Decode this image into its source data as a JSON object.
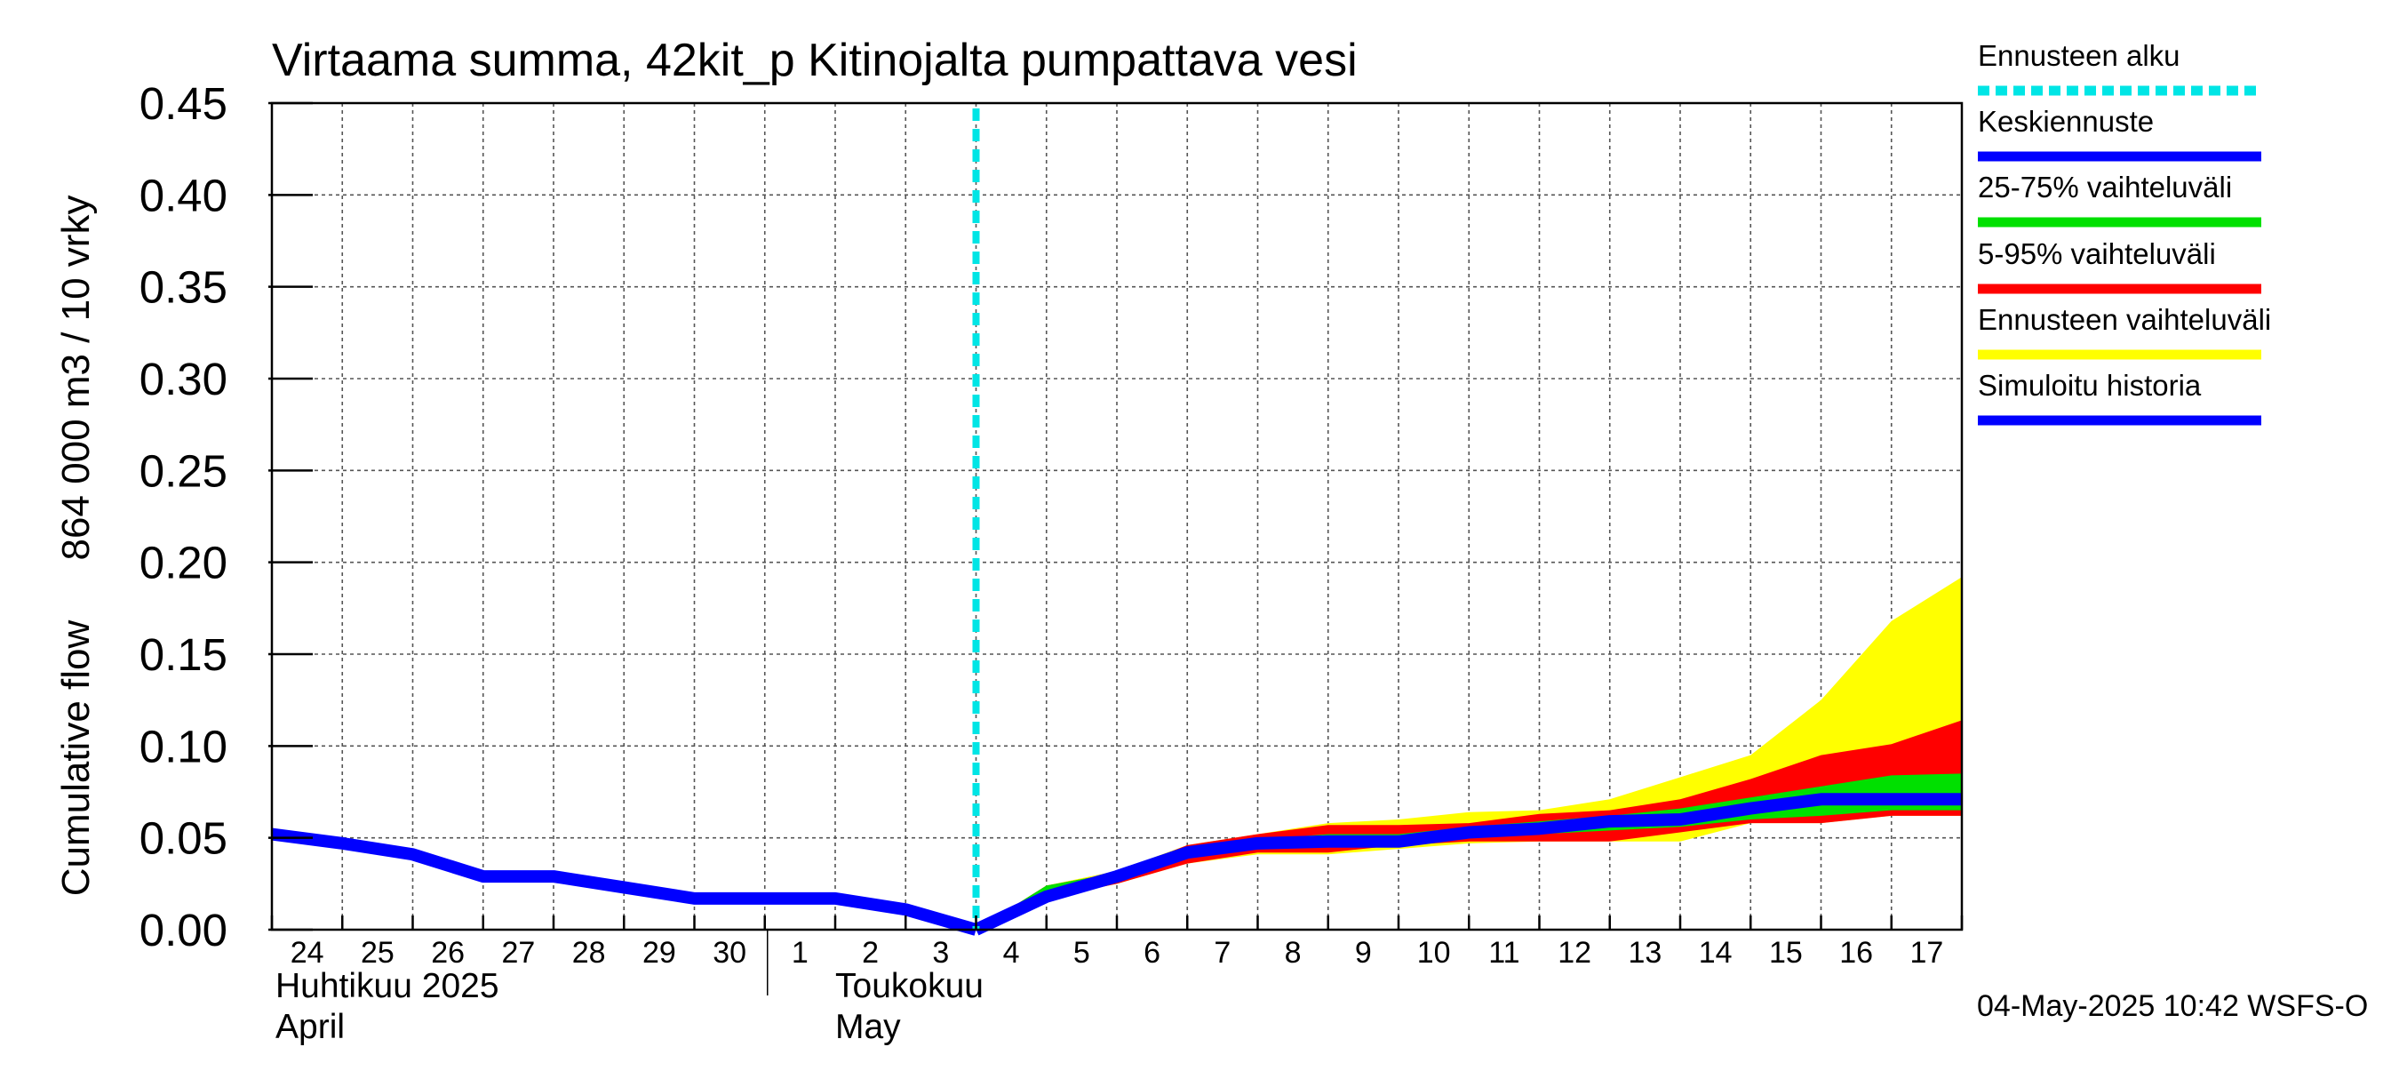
{
  "chart_data": {
    "type": "line",
    "title": "Virtaama summa, 42kit_p Kitinojalta pumpattava vesi",
    "ylabel_lines": [
      "864 000 m3 / 10 vrky",
      "Cumulative flow"
    ],
    "ylim": [
      0,
      0.45
    ],
    "yticks": [
      "0.00",
      "0.05",
      "0.10",
      "0.15",
      "0.20",
      "0.25",
      "0.30",
      "0.35",
      "0.40",
      "0.45"
    ],
    "xaxis": {
      "start_date": "2025-04-24",
      "end_date": "2025-05-18",
      "day_labels": [
        "24",
        "25",
        "26",
        "27",
        "28",
        "29",
        "30",
        "1",
        "2",
        "3",
        "4",
        "5",
        "6",
        "7",
        "8",
        "9",
        "10",
        "11",
        "12",
        "13",
        "14",
        "15",
        "16",
        "17"
      ],
      "month_labels": [
        {
          "fi": "Huhtikuu  2025",
          "en": "April",
          "date": "2025-04-24"
        },
        {
          "fi": "Toukokuu",
          "en": "May",
          "date": "2025-05-02"
        }
      ]
    },
    "forecast_start": "2025-05-04",
    "colors": {
      "forecast_start": "#00e5e5",
      "mean": "#0000ff",
      "p25_75": "#00e000",
      "p5_95": "#ff0000",
      "range": "#ffff00",
      "history": "#0000ff"
    },
    "x_days": [
      "2025-04-24",
      "2025-04-25",
      "2025-04-26",
      "2025-04-27",
      "2025-04-28",
      "2025-04-29",
      "2025-04-30",
      "2025-05-01",
      "2025-05-02",
      "2025-05-03",
      "2025-05-04",
      "2025-05-05",
      "2025-05-06",
      "2025-05-07",
      "2025-05-08",
      "2025-05-09",
      "2025-05-10",
      "2025-05-11",
      "2025-05-12",
      "2025-05-13",
      "2025-05-14",
      "2025-05-15",
      "2025-05-16",
      "2025-05-17",
      "2025-05-18"
    ],
    "history": [
      0.052,
      0.047,
      0.041,
      0.029,
      0.029,
      0.023,
      0.017,
      0.017,
      0.017,
      0.011,
      0.0
    ],
    "forecast": {
      "mean": [
        0.0,
        0.018,
        0.029,
        0.042,
        0.047,
        0.048,
        0.048,
        0.053,
        0.055,
        0.059,
        0.06,
        0.066,
        0.071,
        0.071,
        0.071
      ],
      "p25": [
        0.0,
        0.02,
        0.027,
        0.04,
        0.046,
        0.046,
        0.048,
        0.05,
        0.052,
        0.054,
        0.056,
        0.06,
        0.062,
        0.065,
        0.065
      ],
      "p75": [
        0.0,
        0.024,
        0.031,
        0.043,
        0.049,
        0.052,
        0.052,
        0.056,
        0.059,
        0.062,
        0.066,
        0.072,
        0.078,
        0.084,
        0.085
      ],
      "p5": [
        0.0,
        0.017,
        0.025,
        0.036,
        0.042,
        0.042,
        0.046,
        0.048,
        0.048,
        0.048,
        0.053,
        0.058,
        0.058,
        0.062,
        0.062
      ],
      "p95": [
        0.0,
        0.024,
        0.031,
        0.046,
        0.052,
        0.057,
        0.057,
        0.058,
        0.063,
        0.065,
        0.071,
        0.082,
        0.095,
        0.101,
        0.114
      ],
      "min": [
        0.0,
        0.017,
        0.025,
        0.036,
        0.041,
        0.041,
        0.044,
        0.047,
        0.048,
        0.048,
        0.048,
        0.058,
        0.058,
        0.062,
        0.062
      ],
      "max": [
        0.0,
        0.024,
        0.032,
        0.046,
        0.052,
        0.058,
        0.06,
        0.064,
        0.065,
        0.071,
        0.083,
        0.095,
        0.125,
        0.168,
        0.192
      ]
    },
    "legend": {
      "placement": "right",
      "items": [
        {
          "label": "Ennusteen alku",
          "color": "#00e5e5",
          "style": "dashed"
        },
        {
          "label": "Keskiennuste",
          "color": "#0000ff",
          "style": "solid"
        },
        {
          "label": "25-75% vaihteluväli",
          "color": "#00e000",
          "style": "solid"
        },
        {
          "label": "5-95% vaihteluväli",
          "color": "#ff0000",
          "style": "solid"
        },
        {
          "label": "Ennusteen vaihteluväli",
          "color": "#ffff00",
          "style": "solid"
        },
        {
          "label": "Simuloitu historia",
          "color": "#0000ff",
          "style": "solid"
        }
      ]
    },
    "footer": "04-May-2025 10:42 WSFS-O"
  }
}
